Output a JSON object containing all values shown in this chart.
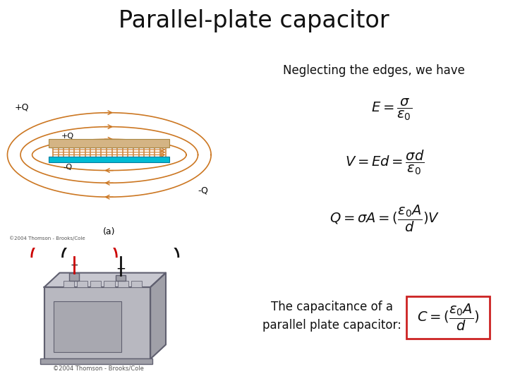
{
  "title": "Parallel-plate capacitor",
  "title_fontsize": 24,
  "background_color": "#ffffff",
  "neglecting_text": "Neglecting the edges, we have",
  "neglecting_fontsize": 12,
  "eq1": "$E = \\dfrac{\\sigma}{\\varepsilon_0}$",
  "eq2": "$V = Ed = \\dfrac{\\sigma d}{\\varepsilon_0}$",
  "eq3": "$Q = \\sigma A = (\\dfrac{\\varepsilon_0 A}{d})V$",
  "eq_fontsize": 14,
  "capacitance_text": "The capacitance of a\nparallel plate capacitor:",
  "capacitance_fontsize": 12,
  "boxed_eq": "$C = (\\dfrac{\\varepsilon_0 A}{d})$",
  "boxed_eq_fontsize": 14,
  "box_color": "#cc2222",
  "box_fill": "#ffffff",
  "field_line_color": "#cc7722",
  "plate_top_color": "#c8c8d0",
  "plate_bot_color": "#00bcd4",
  "zigzag_color": "#cc8844",
  "battery_color": "#b8b8c0",
  "wire_red": "#cc0000",
  "wire_black": "#111111",
  "label_color": "#111111",
  "copyright_text": "©2004 Thomson - Brooks/Cole",
  "copyright_fontsize": 6
}
